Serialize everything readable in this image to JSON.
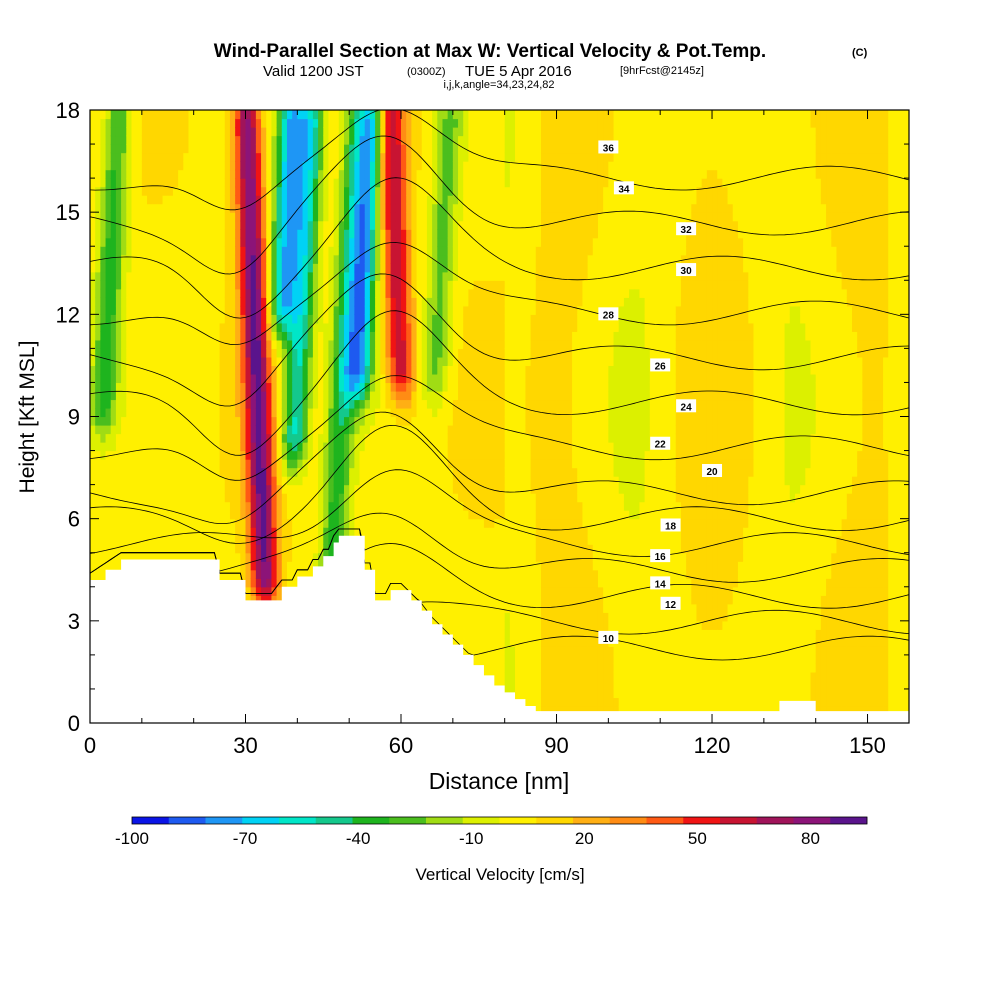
{
  "title": {
    "main": "Wind-Parallel Section at Max W: Vertical Velocity & Pot.Temp.",
    "main_mark": "(C)",
    "line2_prefix": "Valid 1200 JST",
    "line2_utc": "(0300Z)",
    "line2_date": "TUE 5 Apr 2016",
    "line2_fcst": "[9hrFcst@2145z]",
    "line3": "i,j,k,angle=34,23,24,82"
  },
  "chart_data": {
    "type": "heatmap",
    "xlabel": "Distance [nm]",
    "ylabel": "Height [Kft MSL]",
    "xlim": [
      0,
      158
    ],
    "ylim": [
      0,
      18
    ],
    "x_ticks": [
      "0",
      "30",
      "60",
      "90",
      "120",
      "150"
    ],
    "y_ticks": [
      "0",
      "3",
      "6",
      "9",
      "12",
      "15",
      "18"
    ],
    "colorbar": {
      "label": "Vertical Velocity [cm/s]",
      "tick_labels": [
        "-100",
        "-70",
        "-40",
        "-10",
        "20",
        "50",
        "80"
      ],
      "bounds": [
        -100,
        95
      ],
      "colors": [
        "#0a14e6",
        "#1e5af0",
        "#1e96f5",
        "#00d2f5",
        "#00e6c8",
        "#14c88c",
        "#1eb41e",
        "#4bbe1e",
        "#a0dc14",
        "#dcf000",
        "#fff000",
        "#ffd700",
        "#ffaf14",
        "#ff8c14",
        "#ff5a14",
        "#f01414",
        "#c81432",
        "#a0145a",
        "#8c1478",
        "#5a148c"
      ]
    },
    "vertical_velocity_features_cm_s": [
      {
        "x": 32,
        "z_range": [
          4,
          18
        ],
        "w": 80,
        "sign": "updraft"
      },
      {
        "x": 38,
        "z_range": [
          12,
          18
        ],
        "w": -70,
        "sign": "downdraft"
      },
      {
        "x": 41,
        "z_range": [
          8,
          18
        ],
        "w": -60,
        "sign": "downdraft"
      },
      {
        "x": 49,
        "z_range": [
          4,
          18
        ],
        "w": -40,
        "sign": "downdraft"
      },
      {
        "x": 53,
        "z_range": [
          10,
          18
        ],
        "w": -75,
        "sign": "downdraft"
      },
      {
        "x": 59,
        "z_range": [
          10,
          18
        ],
        "w": 60,
        "sign": "updraft"
      },
      {
        "x": 68,
        "z_range": [
          10,
          18
        ],
        "w": -30,
        "sign": "downdraft"
      },
      {
        "x": 4,
        "z_range": [
          9,
          18
        ],
        "w": -40,
        "sign": "downdraft"
      }
    ],
    "potential_temperature_contours_C": [
      {
        "level": 10,
        "label_x": 100,
        "label_z": 2.5
      },
      {
        "level": 12,
        "label_x": 112,
        "label_z": 3.5
      },
      {
        "level": 14,
        "label_x": 110,
        "label_z": 4.1
      },
      {
        "level": 16,
        "label_x": 110,
        "label_z": 4.9
      },
      {
        "level": 18,
        "label_x": 112,
        "label_z": 5.8
      },
      {
        "level": 20,
        "label_x": 120,
        "label_z": 7.4
      },
      {
        "level": 22,
        "label_x": 110,
        "label_z": 8.2
      },
      {
        "level": 24,
        "label_x": 115,
        "label_z": 9.3
      },
      {
        "level": 26,
        "label_x": 110,
        "label_z": 10.5
      },
      {
        "level": 28,
        "label_x": 100,
        "label_z": 12.0
      },
      {
        "level": 30,
        "label_x": 115,
        "label_z": 13.3
      },
      {
        "level": 32,
        "label_x": 115,
        "label_z": 14.5
      },
      {
        "level": 34,
        "label_x": 103,
        "label_z": 15.7
      },
      {
        "level": 36,
        "label_x": 100,
        "label_z": 16.9
      }
    ],
    "terrain_kft": {
      "x": [
        0,
        3,
        6,
        10,
        14,
        17,
        20,
        24,
        25,
        27,
        28,
        29,
        30,
        35,
        37,
        39,
        40,
        42,
        43,
        44,
        45,
        46,
        47,
        48,
        49,
        50,
        51,
        52,
        53,
        54,
        55,
        56,
        57,
        58,
        59,
        60,
        62,
        64,
        66,
        68,
        70,
        72,
        74,
        76,
        78,
        80,
        82,
        84,
        86,
        88,
        90,
        95,
        100,
        105,
        110,
        115,
        120,
        125,
        130,
        133,
        134,
        137,
        139,
        140,
        145,
        150,
        155,
        158
      ],
      "z": [
        4.2,
        4.5,
        4.8,
        4.8,
        4.8,
        4.8,
        4.8,
        4.8,
        4.2,
        4.2,
        4.2,
        4.2,
        3.6,
        3.6,
        4.0,
        4.0,
        4.3,
        4.3,
        4.6,
        4.6,
        4.9,
        4.9,
        5.3,
        5.5,
        5.5,
        5.5,
        5.5,
        5.5,
        4.5,
        4.5,
        3.6,
        3.6,
        3.6,
        3.9,
        3.9,
        3.9,
        3.6,
        3.3,
        2.9,
        2.6,
        2.3,
        2.0,
        1.7,
        1.4,
        1.1,
        0.9,
        0.7,
        0.5,
        0.35,
        0.35,
        0.35,
        0.35,
        0.35,
        0.35,
        0.35,
        0.35,
        0.35,
        0.35,
        0.35,
        0.65,
        0.65,
        0.65,
        0.65,
        0.35,
        0.35,
        0.35,
        0.35,
        0.35
      ]
    }
  }
}
